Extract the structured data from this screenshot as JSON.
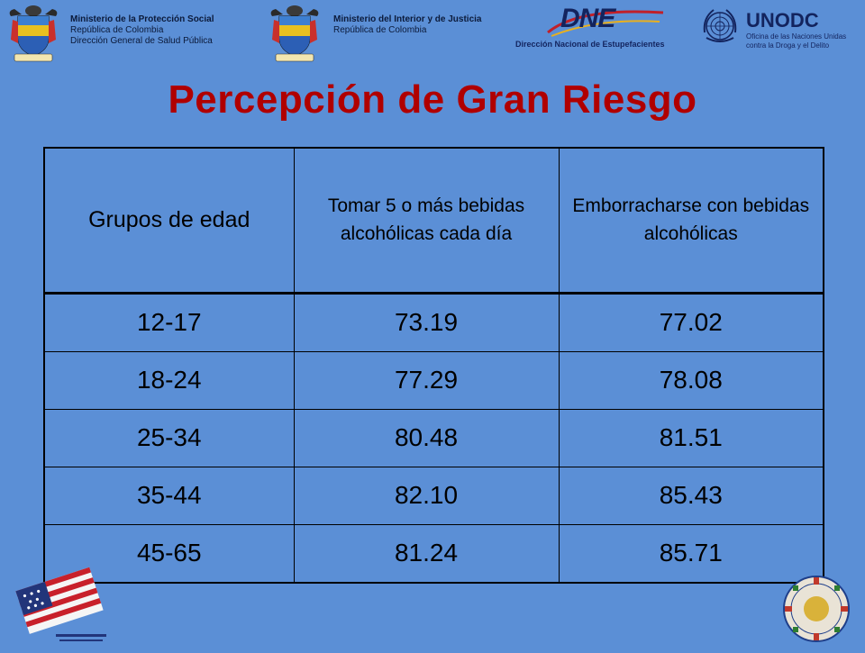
{
  "header": {
    "left_block": {
      "line1": "Ministerio de la Protección Social",
      "line2": "República de Colombia",
      "line3": "Dirección General de Salud Pública"
    },
    "right_block": {
      "line1": "Ministerio del Interior y de Justicia",
      "line2": "República de Colombia"
    },
    "dne": {
      "mark": "DNE",
      "subtitle": "Dirección Nacional de Estupefacientes"
    },
    "unodc": {
      "name": "UNODC",
      "subtitle": "Oficina de las Naciones Unidas contra la Droga y el Delito"
    }
  },
  "title": "Percepción de Gran Riesgo",
  "table": {
    "headers": [
      "Grupos de edad",
      "Tomar 5 o más bebidas alcohólicas cada día",
      "Emborracharse con bebidas alcohólicas"
    ],
    "rows": [
      [
        "12-17",
        "73.19",
        "77.02"
      ],
      [
        "18-24",
        "77.29",
        "78.08"
      ],
      [
        "25-34",
        "80.48",
        "81.51"
      ],
      [
        "35-44",
        "82.10",
        "85.43"
      ],
      [
        "45-65",
        "81.24",
        "85.71"
      ]
    ]
  },
  "colors": {
    "background": "#5b8fd6",
    "title": "#b00000",
    "logo_text": "#13245e"
  }
}
